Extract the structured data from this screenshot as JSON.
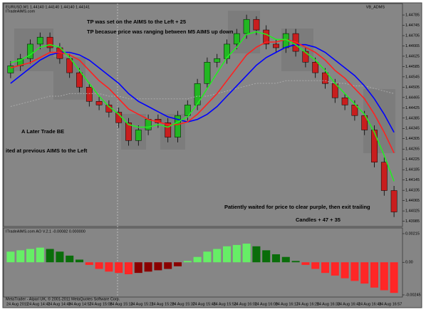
{
  "chart_data": {
    "type": "candlestick",
    "header": "EURUSD,M1 1.44140 1.44140 1.44140 1.44141",
    "site": "ITradeAIMS.com",
    "indicator_name": "VB_ADMS",
    "annotations": [
      "TP was set on the AIMS to the Left + 25",
      "TP becasue price was ranging between M5 AIMS up down",
      "A Later Trade BE",
      "ited at previous AIMS to the Left",
      "Patiently waited for price to clear purple, then exit trailing",
      "Candles + 47 + 35"
    ],
    "open": [
      1.4456,
      1.44588,
      1.44616,
      1.44672,
      1.44699,
      1.44658,
      1.44616,
      1.44561,
      1.44505,
      1.4445,
      1.44436,
      1.44408,
      1.44367,
      1.44298,
      1.44339,
      1.44381,
      1.44367,
      1.44311,
      1.44395,
      1.44436,
      1.44519,
      1.44602,
      1.44616,
      1.44672,
      1.44713,
      1.44768,
      1.44727,
      1.44672,
      1.44658,
      1.44713,
      1.44644,
      1.44602,
      1.44561,
      1.44519,
      1.44464,
      1.44436,
      1.44395,
      1.44339,
      1.44214,
      1.44104
    ],
    "high": [
      1.44606,
      1.44634,
      1.4469,
      1.44717,
      1.44717,
      1.44676,
      1.44634,
      1.44579,
      1.44523,
      1.44468,
      1.44454,
      1.44426,
      1.44385,
      1.44357,
      1.44399,
      1.44399,
      1.44385,
      1.44413,
      1.44454,
      1.44537,
      1.4462,
      1.44634,
      1.4469,
      1.44731,
      1.44786,
      1.4478,
      1.44745,
      1.4469,
      1.44731,
      1.44731,
      1.44662,
      1.4462,
      1.44579,
      1.44537,
      1.44482,
      1.44454,
      1.44413,
      1.44357,
      1.44232,
      1.44122
    ],
    "low": [
      1.4454,
      1.44568,
      1.44596,
      1.44652,
      1.44638,
      1.44596,
      1.44541,
      1.44485,
      1.4443,
      1.44416,
      1.44388,
      1.44347,
      1.44278,
      1.44278,
      1.44319,
      1.44347,
      1.44291,
      1.44291,
      1.44375,
      1.44416,
      1.44499,
      1.44582,
      1.44596,
      1.44652,
      1.44693,
      1.44707,
      1.44652,
      1.44638,
      1.44638,
      1.44624,
      1.44582,
      1.44541,
      1.44499,
      1.44444,
      1.44416,
      1.44375,
      1.44319,
      1.44194,
      1.44084,
      1.44001
    ],
    "close": [
      1.44588,
      1.44616,
      1.44672,
      1.44699,
      1.44658,
      1.44616,
      1.44561,
      1.44505,
      1.4445,
      1.44436,
      1.44408,
      1.44367,
      1.44298,
      1.44339,
      1.44381,
      1.44367,
      1.44311,
      1.44395,
      1.44436,
      1.44519,
      1.44602,
      1.44616,
      1.44672,
      1.44713,
      1.44768,
      1.44727,
      1.44672,
      1.44658,
      1.44713,
      1.44644,
      1.44602,
      1.44561,
      1.44519,
      1.44464,
      1.44436,
      1.44395,
      1.44339,
      1.44214,
      1.44104,
      1.44021
    ],
    "up_color": "#22b722",
    "down_color": "#c81e1e",
    "series": [
      {
        "color": "#aaaaaa",
        "values": [
          1.4443,
          1.4444,
          1.4445,
          1.4446,
          1.4447,
          1.4447,
          1.4448,
          1.4448,
          1.4448,
          1.4448,
          1.4447,
          1.4447,
          1.4446,
          1.4446,
          1.4446,
          1.4446,
          1.4446,
          1.4446,
          1.4446,
          1.4447,
          1.4447,
          1.4448,
          1.4449,
          1.445,
          1.4451,
          1.4452,
          1.4452,
          1.4452,
          1.4453,
          1.4453,
          1.4453,
          1.4453,
          1.4453,
          1.4452,
          1.4452,
          1.4451,
          1.4451,
          1.445,
          1.4449,
          1.4448
        ]
      },
      {
        "color": "#0000ff",
        "values": [
          1.4452,
          1.4455,
          1.4458,
          1.4461,
          1.4463,
          1.4464,
          1.4464,
          1.4463,
          1.4461,
          1.4458,
          1.4455,
          1.4452,
          1.4448,
          1.4445,
          1.4443,
          1.4441,
          1.4439,
          1.4438,
          1.4437,
          1.4438,
          1.444,
          1.4443,
          1.4447,
          1.4451,
          1.4455,
          1.4459,
          1.4462,
          1.4464,
          1.4466,
          1.4467,
          1.4467,
          1.4466,
          1.4464,
          1.4461,
          1.4458,
          1.4455,
          1.4451,
          1.4446,
          1.444,
          1.4433
        ]
      },
      {
        "color": "#ff2020",
        "values": [
          1.4458,
          1.4459,
          1.446,
          1.4462,
          1.4464,
          1.4464,
          1.4463,
          1.4461,
          1.4457,
          1.4453,
          1.445,
          1.4446,
          1.4442,
          1.444,
          1.4438,
          1.4437,
          1.4436,
          1.4436,
          1.4437,
          1.444,
          1.4444,
          1.4448,
          1.4453,
          1.4458,
          1.4463,
          1.4466,
          1.4468,
          1.4468,
          1.4469,
          1.4468,
          1.4466,
          1.4464,
          1.4461,
          1.4457,
          1.4454,
          1.445,
          1.4446,
          1.444,
          1.4433,
          1.4425
        ]
      },
      {
        "color": "#22ee22",
        "values": [
          1.446,
          1.4461,
          1.4463,
          1.4466,
          1.4467,
          1.4466,
          1.4462,
          1.4457,
          1.4452,
          1.4447,
          1.4443,
          1.444,
          1.4436,
          1.4435,
          1.4435,
          1.4436,
          1.4435,
          1.4437,
          1.4439,
          1.4444,
          1.445,
          1.4456,
          1.4462,
          1.4466,
          1.4471,
          1.4472,
          1.4471,
          1.4469,
          1.4469,
          1.4467,
          1.4464,
          1.4461,
          1.4457,
          1.4452,
          1.4448,
          1.4444,
          1.444,
          1.4433,
          1.4424,
          1.4414
        ]
      }
    ],
    "ylim": [
      1.4397,
      1.4481
    ],
    "yticks": [
      1.44785,
      1.44745,
      1.44705,
      1.44665,
      1.44625,
      1.44585,
      1.44545,
      1.44505,
      1.44465,
      1.44425,
      1.44385,
      1.44345,
      1.44305,
      1.44265,
      1.44225,
      1.44185,
      1.44145,
      1.44105,
      1.44065,
      1.44025,
      1.43985
    ],
    "time_labels": [
      "24 Aug 2011",
      "24 Aug 14:41",
      "24 Aug 14:49",
      "24 Aug 14:57",
      "24 Aug 15:05",
      "24 Aug 15:13",
      "24 Aug 15:21",
      "24 Aug 15:29",
      "24 Aug 15:37",
      "24 Aug 15:45",
      "24 Aug 15:53",
      "24 Aug 16:01",
      "24 Aug 16:09",
      "24 Aug 16:17",
      "24 Aug 16:25",
      "24 Aug 16:33",
      "24 Aug 16:41",
      "24 Aug 16:49",
      "24 Aug 16:57"
    ],
    "oscillator": {
      "header": "ITradeAIMS.com AO V.2.1 -0.00082 0.000000",
      "values": [
        0.0008,
        0.0009,
        0.001,
        0.0011,
        0.001,
        0.0008,
        0.0005,
        0.0002,
        -0.0002,
        -0.0005,
        -0.0007,
        -0.0008,
        -0.0009,
        -0.0008,
        -0.0007,
        -0.0006,
        -0.0005,
        -0.0003,
        0.0001,
        0.0004,
        0.0008,
        0.001,
        0.0012,
        0.0013,
        0.0014,
        0.0012,
        0.0009,
        0.0006,
        0.0004,
        0.0001,
        -0.0002,
        -0.0005,
        -0.0008,
        -0.001,
        -0.0012,
        -0.0014,
        -0.0016,
        -0.0019,
        -0.0021,
        -0.0023
      ],
      "colors": {
        "pos_up": "#66ee66",
        "pos_down": "#0a6d0a",
        "neg_up": "#8b0000",
        "neg_down": "#ff2626"
      },
      "ylim": [
        -0.00245,
        0.00215
      ],
      "yticks": [
        0.00215,
        {
          "value": 0,
          "label": "0.00"
        },
        -0.00245
      ]
    },
    "footer": "MetaTrader - Alpari UK, © 2001-2011 MetaQuotes Software Corp."
  }
}
